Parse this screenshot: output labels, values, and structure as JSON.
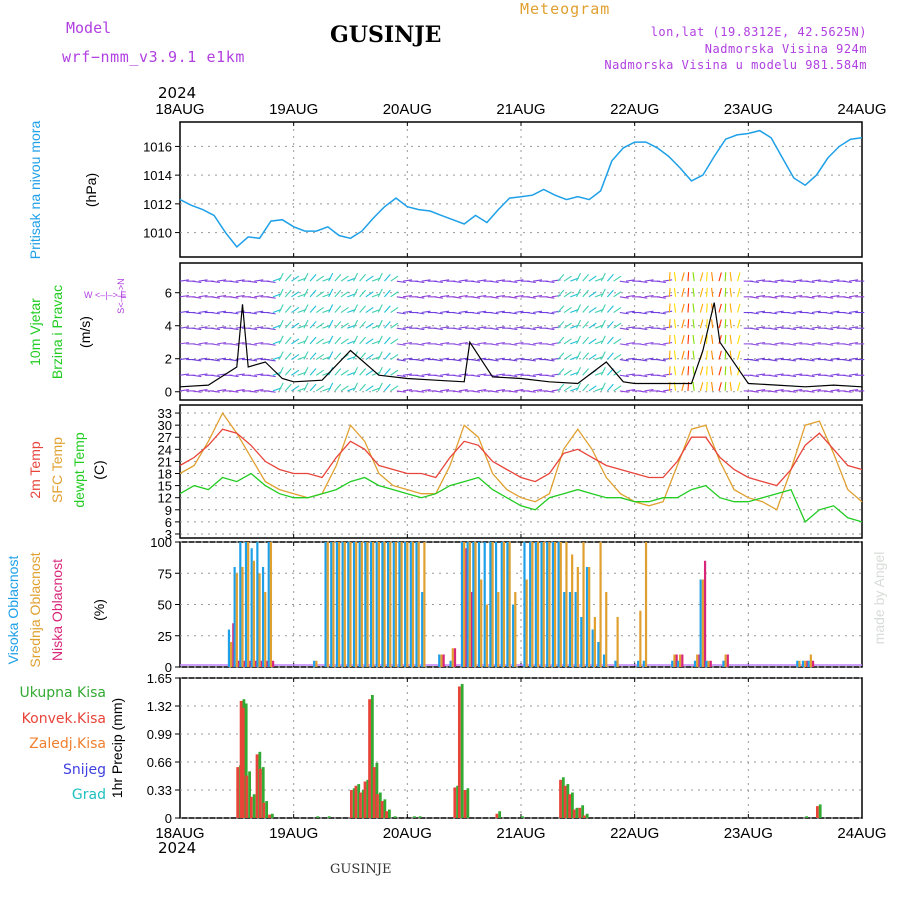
{
  "header": {
    "model_label": "Model",
    "model_name": "wrf−nmm_v3.9.1  e1km",
    "title": "GUSINJE",
    "meteogram": "Meteogram",
    "lonlat": "lon,lat (19.8312E, 42.5625N)",
    "elevation": "Nadmorska Visina 924m",
    "model_elevation": "Nadmorska Visina u modelu 981.584m",
    "year_top": "2024",
    "year_bottom": "2024",
    "footer": "GUSINJE",
    "watermark": "made by Angel"
  },
  "colors": {
    "pressure": "#1ea0e8",
    "wind_label": "#22cc22",
    "t2m": "#e8443a",
    "sfc": "#e0a030",
    "dewpt": "#22cc22",
    "high_cloud": "#1ea0e8",
    "mid_cloud": "#e0a030",
    "low_cloud": "#d8267a",
    "precip_total": "#33aa33",
    "precip_conv": "#e8443a",
    "precip_frozen": "#f08030",
    "snow": "#4040e0",
    "hail": "#20c0c0",
    "model": "#b040e0",
    "meteogram": "#e0a030"
  },
  "chart_data": [
    {
      "type": "line",
      "panel": "pressure",
      "ylabel": "Pritisak na nivou mora",
      "yunit": "(hPa)",
      "x_ticks": [
        "18AUG",
        "19AUG",
        "20AUG",
        "21AUG",
        "22AUG",
        "23AUG",
        "24AUG"
      ],
      "ylim": [
        1008.3,
        1017.7
      ],
      "y_ticks": [
        1010,
        1012,
        1014,
        1016
      ],
      "grid": true,
      "x": [
        0,
        0.1,
        0.2,
        0.3,
        0.4,
        0.5,
        0.6,
        0.7,
        0.8,
        0.9,
        1.0,
        1.1,
        1.2,
        1.3,
        1.4,
        1.5,
        1.6,
        1.7,
        1.8,
        1.9,
        2.0,
        2.1,
        2.2,
        2.3,
        2.4,
        2.5,
        2.6,
        2.7,
        2.8,
        2.9,
        3.0,
        3.1,
        3.2,
        3.3,
        3.4,
        3.5,
        3.6,
        3.7,
        3.8,
        3.9,
        4.0,
        4.1,
        4.2,
        4.3,
        4.4,
        4.5,
        4.6,
        4.7,
        4.8,
        4.9,
        5.0,
        5.1,
        5.2,
        5.3,
        5.4,
        5.5,
        5.6,
        5.7,
        5.8,
        5.9,
        6.0
      ],
      "series": [
        {
          "values": [
            1012.3,
            1011.9,
            1011.6,
            1011.2,
            1010.0,
            1009.0,
            1009.7,
            1009.6,
            1010.8,
            1010.9,
            1010.4,
            1010.1,
            1010.1,
            1010.4,
            1009.8,
            1009.6,
            1010.1,
            1011.0,
            1011.8,
            1012.4,
            1011.8,
            1011.6,
            1011.5,
            1011.2,
            1010.9,
            1010.6,
            1011.2,
            1010.7,
            1011.6,
            1012.4,
            1012.5,
            1012.6,
            1013.0,
            1012.6,
            1012.3,
            1012.5,
            1012.3,
            1012.9,
            1015.0,
            1015.9,
            1016.3,
            1016.3,
            1015.9,
            1015.3,
            1014.5,
            1013.6,
            1014.0,
            1015.3,
            1016.5,
            1016.8,
            1016.9,
            1017.1,
            1016.6,
            1015.2,
            1013.8,
            1013.3,
            1014.0,
            1015.2,
            1016.0,
            1016.5,
            1016.6
          ]
        }
      ]
    },
    {
      "type": "line",
      "panel": "wind",
      "ylabel_line1": "10m Vjetar",
      "ylabel_line2": "Brzina i Pravac",
      "yunit": "(m/s)",
      "compass": "W <–|–> E",
      "compass_vertical": "S<–|–>N",
      "ylim": [
        -0.5,
        7.8
      ],
      "y_ticks": [
        0,
        2,
        4,
        6
      ],
      "x": [
        0,
        0.25,
        0.5,
        0.55,
        0.6,
        0.75,
        0.9,
        1.0,
        1.25,
        1.5,
        1.75,
        2.0,
        2.25,
        2.5,
        2.55,
        2.75,
        3.0,
        3.25,
        3.5,
        3.75,
        3.9,
        4.0,
        4.25,
        4.5,
        4.6,
        4.7,
        4.75,
        5.0,
        5.25,
        5.5,
        5.75,
        6.0
      ],
      "series": [
        {
          "values": [
            0.3,
            0.4,
            1.5,
            5.3,
            1.5,
            1.8,
            0.8,
            0.6,
            0.7,
            2.5,
            1.0,
            0.8,
            0.7,
            0.6,
            3.0,
            0.9,
            0.8,
            0.6,
            0.5,
            1.8,
            0.6,
            0.5,
            0.5,
            0.5,
            2.5,
            5.4,
            3.0,
            0.5,
            0.4,
            0.3,
            0.4,
            0.3
          ]
        }
      ]
    },
    {
      "type": "line",
      "panel": "temperature",
      "ylabel_t2m": "2m Temp",
      "ylabel_sfc": "SFC Temp",
      "ylabel_dew": "dewpt Temp",
      "yunit": "(C)",
      "ylim": [
        2,
        35
      ],
      "y_ticks": [
        3,
        6,
        9,
        12,
        15,
        18,
        21,
        24,
        27,
        30,
        33
      ],
      "x": [
        0,
        0.125,
        0.25,
        0.375,
        0.5,
        0.625,
        0.75,
        0.875,
        1.0,
        1.125,
        1.25,
        1.375,
        1.5,
        1.625,
        1.75,
        1.875,
        2.0,
        2.125,
        2.25,
        2.375,
        2.5,
        2.625,
        2.75,
        2.875,
        3.0,
        3.125,
        3.25,
        3.375,
        3.5,
        3.625,
        3.75,
        3.875,
        4.0,
        4.125,
        4.25,
        4.375,
        4.5,
        4.625,
        4.75,
        4.875,
        5.0,
        5.125,
        5.25,
        5.375,
        5.5,
        5.625,
        5.75,
        5.875,
        6.0
      ],
      "series": [
        {
          "name": "2m Temp",
          "values": [
            20,
            22,
            25,
            29,
            28,
            25,
            21,
            19,
            18,
            18,
            17,
            22,
            26,
            24,
            20,
            19,
            18,
            18,
            17,
            22,
            26,
            25,
            21,
            19,
            17,
            16,
            18,
            23,
            24,
            22,
            20,
            19,
            18,
            17,
            17,
            21,
            27,
            27,
            22,
            19,
            17,
            16,
            15,
            19,
            25,
            28,
            24,
            20,
            19
          ]
        },
        {
          "name": "SFC Temp",
          "values": [
            18,
            20,
            26,
            33,
            28,
            22,
            16,
            14,
            13,
            12,
            13,
            20,
            30,
            26,
            18,
            15,
            14,
            13,
            13,
            20,
            30,
            27,
            18,
            14,
            12,
            11,
            13,
            24,
            29,
            24,
            17,
            13,
            11,
            10,
            11,
            20,
            29,
            30,
            21,
            14,
            12,
            11,
            9,
            19,
            30,
            31,
            23,
            14,
            11
          ]
        },
        {
          "name": "dewpt Temp",
          "values": [
            13,
            15,
            14,
            17,
            16,
            18,
            15,
            13,
            12,
            12,
            13,
            14,
            16,
            17,
            15,
            14,
            13,
            12,
            13,
            15,
            16,
            17,
            14,
            12,
            10,
            9,
            12,
            13,
            14,
            13,
            12,
            12,
            11,
            11,
            12,
            12,
            14,
            15,
            12,
            11,
            11,
            12,
            13,
            14,
            6,
            9,
            10,
            7,
            6
          ]
        }
      ]
    },
    {
      "type": "bar",
      "panel": "cloud",
      "ylabel_high": "Visoka Oblacnost",
      "ylabel_mid": "Srednja Oblacnost",
      "ylabel_low": "Niska Oblacnost",
      "yunit": "(%)",
      "ylim": [
        0,
        100
      ],
      "y_ticks": [
        0,
        25,
        50,
        75,
        100
      ],
      "x": [
        0.45,
        0.5,
        0.55,
        0.6,
        0.65,
        0.7,
        0.75,
        0.8,
        1.2,
        1.3,
        1.35,
        1.4,
        1.45,
        1.5,
        1.55,
        1.6,
        1.65,
        1.7,
        1.75,
        1.8,
        1.85,
        1.9,
        1.95,
        2.0,
        2.05,
        2.1,
        2.15,
        2.3,
        2.4,
        2.5,
        2.55,
        2.6,
        2.65,
        2.7,
        2.75,
        2.8,
        2.85,
        2.9,
        2.95,
        3.05,
        3.1,
        3.15,
        3.2,
        3.25,
        3.3,
        3.35,
        3.4,
        3.45,
        3.5,
        3.55,
        3.6,
        3.65,
        3.7,
        3.75,
        3.85,
        4.05,
        4.1,
        4.35,
        4.4,
        4.55,
        4.6,
        4.65,
        4.8,
        5.45,
        5.5,
        5.55
      ],
      "series": [
        {
          "name": "Visoka Oblacnost",
          "values": [
            30,
            80,
            100,
            100,
            95,
            100,
            80,
            100,
            5,
            100,
            100,
            100,
            100,
            100,
            100,
            100,
            100,
            100,
            100,
            100,
            100,
            100,
            100,
            100,
            100,
            100,
            60,
            10,
            5,
            100,
            100,
            100,
            100,
            100,
            100,
            100,
            100,
            100,
            50,
            100,
            100,
            100,
            100,
            100,
            100,
            100,
            60,
            60,
            60,
            40,
            80,
            30,
            20,
            10,
            5,
            5,
            5,
            5,
            5,
            5,
            70,
            5,
            5,
            5,
            5,
            5
          ]
        },
        {
          "name": "Srednja Oblacnost",
          "values": [
            20,
            75,
            80,
            100,
            85,
            75,
            60,
            100,
            5,
            100,
            100,
            100,
            100,
            100,
            100,
            100,
            100,
            100,
            100,
            100,
            100,
            100,
            100,
            100,
            100,
            100,
            100,
            10,
            15,
            100,
            100,
            100,
            70,
            50,
            100,
            60,
            100,
            100,
            60,
            70,
            100,
            100,
            100,
            100,
            100,
            100,
            100,
            90,
            80,
            100,
            80,
            40,
            100,
            60,
            40,
            45,
            100,
            10,
            10,
            10,
            70,
            5,
            10,
            5,
            5,
            10
          ]
        },
        {
          "name": "Niska Oblacnost",
          "values": [
            35,
            5,
            5,
            5,
            5,
            5,
            5,
            5,
            0,
            0,
            0,
            0,
            0,
            0,
            0,
            0,
            0,
            0,
            0,
            0,
            0,
            0,
            0,
            0,
            0,
            0,
            0,
            10,
            15,
            95,
            60,
            0,
            0,
            0,
            0,
            0,
            0,
            0,
            0,
            0,
            0,
            0,
            0,
            0,
            0,
            0,
            0,
            0,
            0,
            0,
            0,
            0,
            0,
            0,
            0,
            0,
            0,
            10,
            10,
            10,
            85,
            5,
            10,
            0,
            5,
            5
          ]
        }
      ]
    },
    {
      "type": "bar",
      "panel": "precip",
      "ylabel": "1hr Precip (mm)",
      "legend": [
        "Ukupna Kisa",
        "Konvek.Kisa",
        "Zaledj.Kisa",
        "Snijeg",
        "Grad"
      ],
      "ylim": [
        0,
        1.65
      ],
      "y_ticks": [
        0,
        0.33,
        0.66,
        0.99,
        1.32,
        1.65
      ],
      "y_tick_labels": [
        "0",
        "0.33",
        "0.66",
        "0.99",
        "1.32",
        "1.65"
      ],
      "x": [
        0.52,
        0.55,
        0.57,
        0.6,
        0.64,
        0.69,
        0.72,
        0.75,
        0.8,
        1.2,
        1.3,
        1.52,
        1.56,
        1.6,
        1.64,
        1.68,
        1.72,
        1.75,
        1.79,
        1.83,
        1.88,
        2.05,
        2.1,
        2.43,
        2.47,
        2.52,
        2.8,
        3.0,
        3.36,
        3.4,
        3.44,
        3.48,
        3.53,
        3.57,
        5.5,
        5.62
      ],
      "series": [
        {
          "name": "Ukupna Kisa",
          "values": [
            0.62,
            1.4,
            1.35,
            0.55,
            0.28,
            0.78,
            0.6,
            0.2,
            0.05,
            0.02,
            0.02,
            0.35,
            0.4,
            0.33,
            0.45,
            1.45,
            0.65,
            0.3,
            0.22,
            0.1,
            0.02,
            0.02,
            0.02,
            0.38,
            1.58,
            0.35,
            0.08,
            0.02,
            0.48,
            0.4,
            0.3,
            0.12,
            0.15,
            0.05,
            0.02,
            0.16
          ]
        },
        {
          "name": "Konvek.Kisa",
          "values": [
            0.6,
            1.38,
            1.3,
            0.5,
            0.25,
            0.75,
            0.58,
            0.18,
            0.04,
            0.0,
            0.0,
            0.33,
            0.38,
            0.3,
            0.43,
            1.4,
            0.6,
            0.28,
            0.2,
            0.08,
            0.0,
            0.0,
            0.0,
            0.36,
            1.55,
            0.33,
            0.05,
            0.0,
            0.45,
            0.38,
            0.28,
            0.1,
            0.12,
            0.03,
            0.0,
            0.14
          ]
        }
      ]
    }
  ]
}
